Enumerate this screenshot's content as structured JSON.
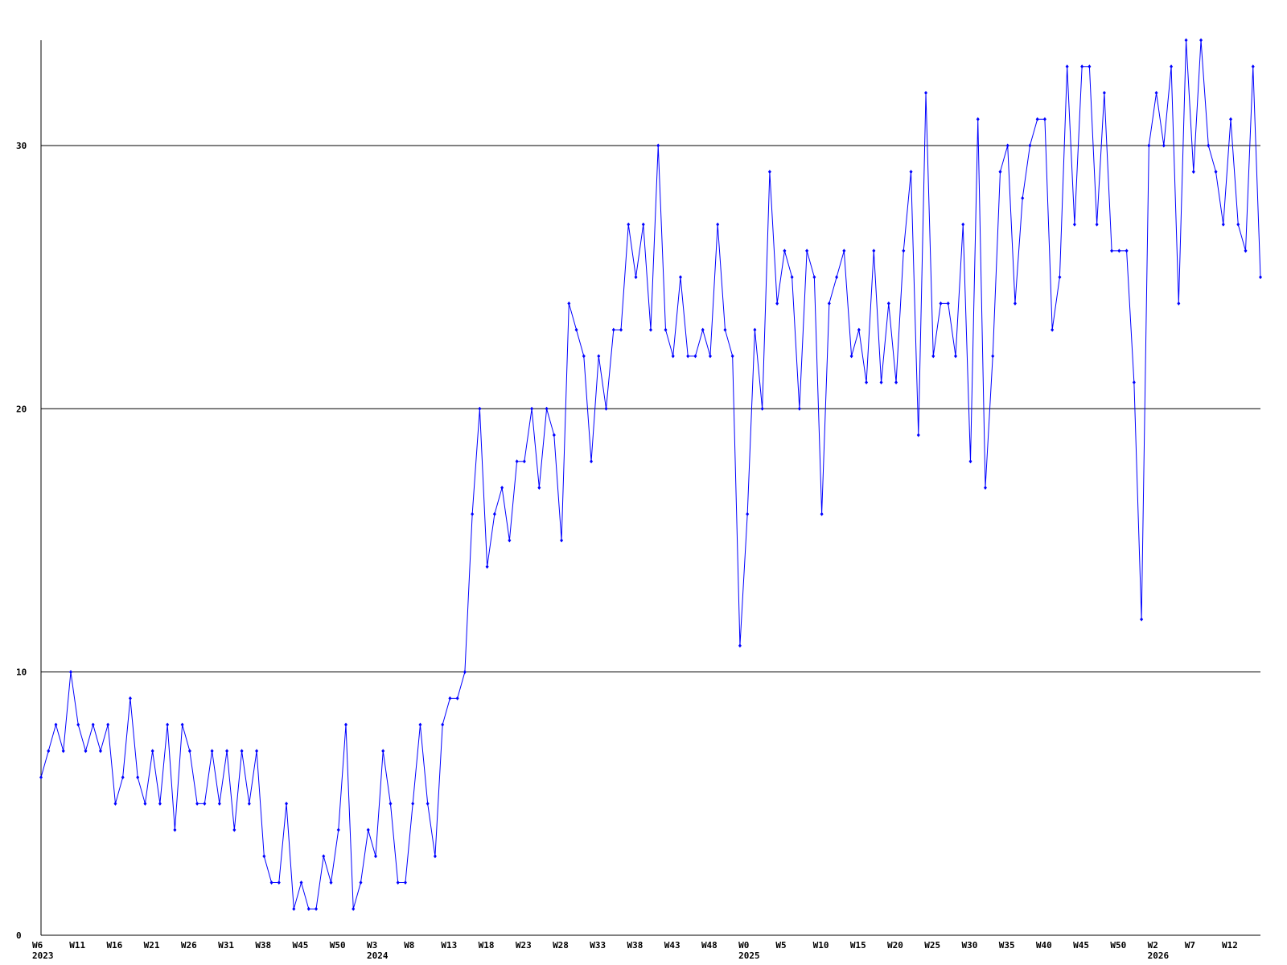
{
  "chart_data": {
    "type": "line",
    "color": "#0000ff",
    "grid": true,
    "ylim": [
      0,
      34
    ],
    "yticks": [
      0,
      10,
      20,
      30
    ],
    "categories": [
      [
        "W6",
        "2023"
      ],
      null,
      null,
      null,
      null,
      "W11",
      null,
      null,
      null,
      null,
      "W16",
      null,
      null,
      null,
      null,
      "W21",
      null,
      null,
      null,
      null,
      "W26",
      null,
      null,
      null,
      null,
      "W31",
      null,
      null,
      null,
      null,
      "W38",
      null,
      null,
      null,
      null,
      "W45",
      null,
      null,
      null,
      null,
      "W50",
      null,
      null,
      null,
      null,
      [
        "W3",
        "2024"
      ],
      null,
      null,
      null,
      null,
      "W8",
      null,
      null,
      null,
      null,
      "W13",
      null,
      null,
      null,
      null,
      "W18",
      null,
      null,
      null,
      null,
      "W23",
      null,
      null,
      null,
      null,
      "W28",
      null,
      null,
      null,
      null,
      "W33",
      null,
      null,
      null,
      null,
      "W38",
      null,
      null,
      null,
      null,
      "W43",
      null,
      null,
      null,
      null,
      "W48",
      null,
      null,
      null,
      null,
      [
        "W0",
        "2025"
      ],
      null,
      null,
      null,
      null,
      "W5",
      null,
      null,
      null,
      null,
      "W10",
      null,
      null,
      null,
      null,
      "W15",
      null,
      null,
      null,
      null,
      "W20",
      null,
      null,
      null,
      null,
      "W25",
      null,
      null,
      null,
      null,
      "W30",
      null,
      null,
      null,
      null,
      "W35",
      null,
      null,
      null,
      null,
      "W40",
      null,
      null,
      null,
      null,
      "W45",
      null,
      null,
      null,
      null,
      "W50",
      null,
      null,
      null,
      null,
      [
        "W2",
        "2026"
      ],
      null,
      null,
      null,
      null,
      "W7",
      null,
      null,
      null,
      null,
      "W12",
      null,
      null,
      null,
      null
    ],
    "values": [
      6,
      7,
      8,
      7,
      10,
      8,
      7,
      8,
      7,
      8,
      5,
      6,
      9,
      6,
      5,
      7,
      5,
      8,
      4,
      8,
      7,
      5,
      5,
      7,
      5,
      7,
      4,
      7,
      5,
      7,
      3,
      2,
      2,
      5,
      1,
      2,
      1,
      1,
      3,
      2,
      4,
      8,
      1,
      2,
      4,
      3,
      7,
      5,
      2,
      2,
      5,
      8,
      5,
      3,
      8,
      9,
      9,
      10,
      16,
      20,
      14,
      16,
      17,
      15,
      18,
      18,
      20,
      17,
      20,
      19,
      15,
      24,
      23,
      22,
      18,
      22,
      20,
      23,
      23,
      27,
      25,
      27,
      23,
      30,
      23,
      22,
      25,
      22,
      22,
      23,
      22,
      27,
      23,
      22,
      11,
      16,
      23,
      20,
      29,
      24,
      26,
      25,
      20,
      26,
      25,
      16,
      24,
      25,
      26,
      22,
      23,
      21,
      26,
      21,
      24,
      21,
      26,
      29,
      19,
      32,
      22,
      24,
      24,
      22,
      27,
      18,
      31,
      17,
      22,
      29,
      30,
      24,
      28,
      30,
      31,
      31,
      23,
      25,
      33,
      27,
      33,
      33,
      27,
      32,
      26,
      26,
      26,
      21,
      12,
      30,
      32,
      30,
      33,
      24,
      34,
      29,
      34,
      30,
      29,
      27,
      31,
      27,
      26,
      33,
      25
    ]
  }
}
